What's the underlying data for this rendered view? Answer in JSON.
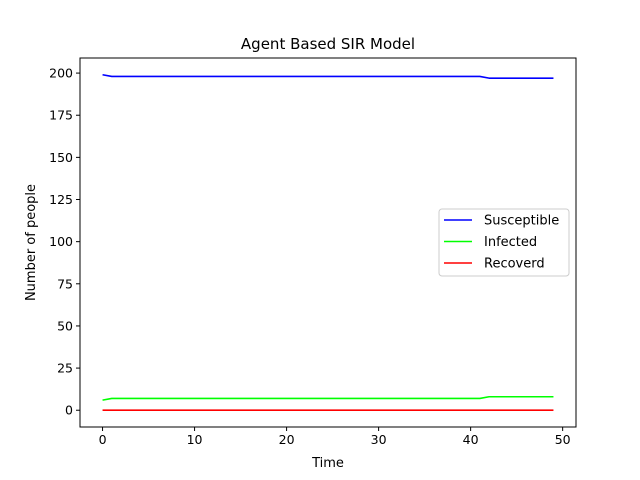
{
  "chart_data": {
    "type": "line",
    "title": "Agent Based SIR Model",
    "xlabel": "Time",
    "ylabel": "Number of people",
    "xlim": [
      -2.45,
      51.45
    ],
    "ylim": [
      -9.95,
      208.95
    ],
    "xticks": [
      0,
      10,
      20,
      30,
      40,
      50
    ],
    "yticks": [
      0,
      25,
      50,
      75,
      100,
      125,
      150,
      175,
      200
    ],
    "grid": false,
    "legend_position": "center-right",
    "series": [
      {
        "name": "Susceptible",
        "color": "#0000ff",
        "x": [
          0,
          1,
          2,
          3,
          4,
          5,
          6,
          7,
          8,
          9,
          10,
          11,
          12,
          13,
          14,
          15,
          16,
          17,
          18,
          19,
          20,
          21,
          22,
          23,
          24,
          25,
          26,
          27,
          28,
          29,
          30,
          31,
          32,
          33,
          34,
          35,
          36,
          37,
          38,
          39,
          40,
          41,
          42,
          43,
          44,
          45,
          46,
          47,
          48,
          49
        ],
        "values": [
          199,
          198,
          198,
          198,
          198,
          198,
          198,
          198,
          198,
          198,
          198,
          198,
          198,
          198,
          198,
          198,
          198,
          198,
          198,
          198,
          198,
          198,
          198,
          198,
          198,
          198,
          198,
          198,
          198,
          198,
          198,
          198,
          198,
          198,
          198,
          198,
          198,
          198,
          198,
          198,
          198,
          198,
          197,
          197,
          197,
          197,
          197,
          197,
          197,
          197
        ]
      },
      {
        "name": "Infected",
        "color": "#00ff00",
        "x": [
          0,
          1,
          2,
          3,
          4,
          5,
          6,
          7,
          8,
          9,
          10,
          11,
          12,
          13,
          14,
          15,
          16,
          17,
          18,
          19,
          20,
          21,
          22,
          23,
          24,
          25,
          26,
          27,
          28,
          29,
          30,
          31,
          32,
          33,
          34,
          35,
          36,
          37,
          38,
          39,
          40,
          41,
          42,
          43,
          44,
          45,
          46,
          47,
          48,
          49
        ],
        "values": [
          6,
          7,
          7,
          7,
          7,
          7,
          7,
          7,
          7,
          7,
          7,
          7,
          7,
          7,
          7,
          7,
          7,
          7,
          7,
          7,
          7,
          7,
          7,
          7,
          7,
          7,
          7,
          7,
          7,
          7,
          7,
          7,
          7,
          7,
          7,
          7,
          7,
          7,
          7,
          7,
          7,
          7,
          8,
          8,
          8,
          8,
          8,
          8,
          8,
          8
        ]
      },
      {
        "name": "Recoverd",
        "color": "#ff0000",
        "x": [
          0,
          1,
          2,
          3,
          4,
          5,
          6,
          7,
          8,
          9,
          10,
          11,
          12,
          13,
          14,
          15,
          16,
          17,
          18,
          19,
          20,
          21,
          22,
          23,
          24,
          25,
          26,
          27,
          28,
          29,
          30,
          31,
          32,
          33,
          34,
          35,
          36,
          37,
          38,
          39,
          40,
          41,
          42,
          43,
          44,
          45,
          46,
          47,
          48,
          49
        ],
        "values": [
          0,
          0,
          0,
          0,
          0,
          0,
          0,
          0,
          0,
          0,
          0,
          0,
          0,
          0,
          0,
          0,
          0,
          0,
          0,
          0,
          0,
          0,
          0,
          0,
          0,
          0,
          0,
          0,
          0,
          0,
          0,
          0,
          0,
          0,
          0,
          0,
          0,
          0,
          0,
          0,
          0,
          0,
          0,
          0,
          0,
          0,
          0,
          0,
          0,
          0
        ]
      }
    ]
  }
}
